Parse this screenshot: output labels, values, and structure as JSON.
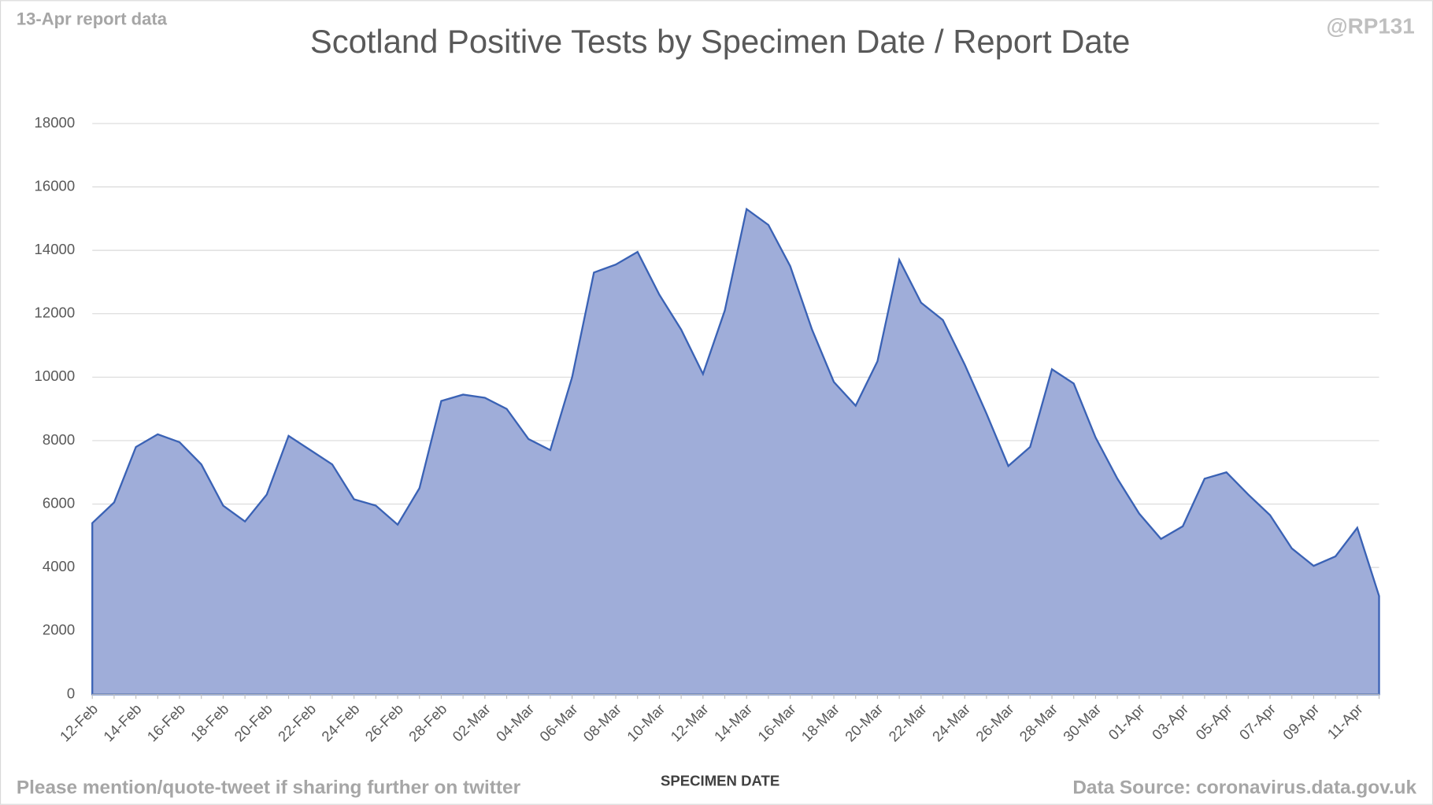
{
  "chart_data": {
    "type": "area",
    "title": "Scotland Positive Tests by Specimen Date / Report Date",
    "subtitle": "13-Apr report data",
    "credit": "@RP131",
    "footer_left": "Please mention/quote-tweet if sharing further on twitter",
    "footer_right": "Data Source: coronavirus.data.gov.uk",
    "x_label": "SPECIMEN DATE",
    "categories": [
      "12-Feb",
      null,
      "14-Feb",
      null,
      "16-Feb",
      null,
      "18-Feb",
      null,
      "20-Feb",
      null,
      "22-Feb",
      null,
      "24-Feb",
      null,
      "26-Feb",
      null,
      "28-Feb",
      null,
      "02-Mar",
      null,
      "04-Mar",
      null,
      "06-Mar",
      null,
      "08-Mar",
      null,
      "10-Mar",
      null,
      "12-Mar",
      null,
      "14-Mar",
      null,
      "16-Mar",
      null,
      "18-Mar",
      null,
      "20-Mar",
      null,
      "22-Mar",
      null,
      "24-Mar",
      null,
      "26-Mar",
      null,
      "28-Mar",
      null,
      "30-Mar",
      null,
      "01-Apr",
      null,
      "03-Apr",
      null,
      "05-Apr",
      null,
      "07-Apr",
      null,
      "09-Apr",
      null,
      "11-Apr",
      null
    ],
    "values": [
      5400,
      6050,
      7800,
      8200,
      7950,
      7250,
      5950,
      5450,
      6300,
      8150,
      7700,
      7250,
      6150,
      5950,
      5350,
      6500,
      9250,
      9450,
      9350,
      9000,
      8050,
      7700,
      10000,
      13300,
      13550,
      13950,
      12600,
      11500,
      10100,
      12100,
      15300,
      14800,
      13500,
      11500,
      9850,
      9100,
      10500,
      13700,
      12350,
      11800,
      10400,
      8850,
      7200,
      7800,
      10250,
      9800,
      8100,
      6800,
      5700,
      4900,
      5300,
      6800,
      7000,
      6300,
      5650,
      4600,
      4050,
      4350,
      5250,
      3100
    ],
    "color": "#9fadd9",
    "line_color": "#3a62b5",
    "ylim": [
      0,
      18000
    ],
    "yticks": [
      0,
      2000,
      4000,
      6000,
      8000,
      10000,
      12000,
      14000,
      16000,
      18000
    ],
    "grid": true
  }
}
